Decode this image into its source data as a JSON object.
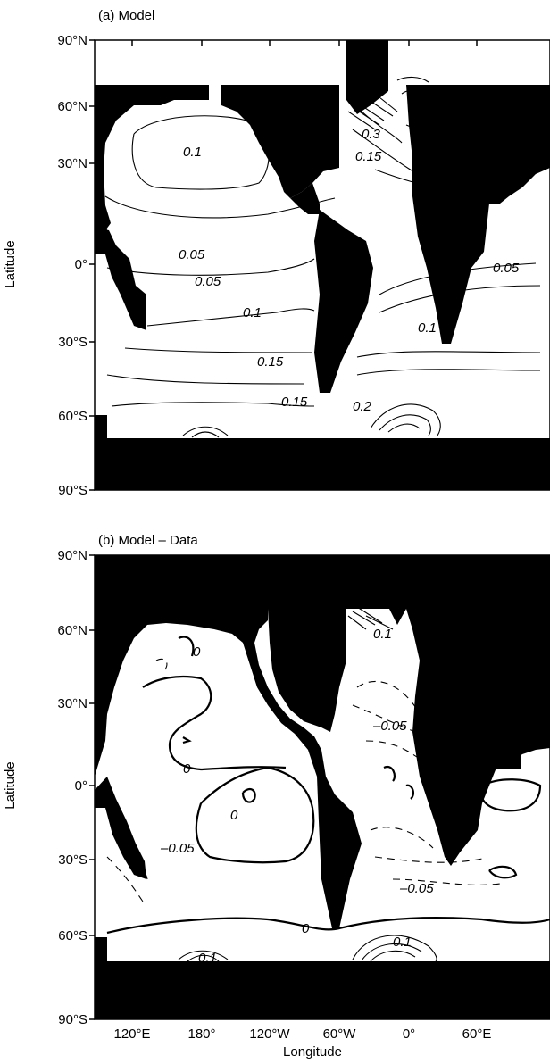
{
  "figure": {
    "panels": [
      {
        "title": "(a) Model",
        "y_label": "Latitude",
        "y_ticks": [
          "90°N",
          "60°N",
          "30°N",
          "0°",
          "30°S",
          "60°S",
          "90°S"
        ],
        "contour_labels": [
          "0.1",
          "0.3",
          "0.15",
          "0.05",
          "0.05",
          "0.05",
          "0.1",
          "0.1",
          "0.15",
          "0.15",
          "0.2"
        ]
      },
      {
        "title": "(b) Model – Data",
        "y_label": "Latitude",
        "y_ticks": [
          "90°N",
          "60°N",
          "30°N",
          "0°",
          "30°S",
          "60°S",
          "90°S"
        ],
        "contour_labels": [
          "0",
          "0.1",
          "–0.05",
          "0",
          "0",
          "–0.05",
          "–0.05",
          "0",
          "0.1",
          "0.1"
        ]
      }
    ],
    "x_label": "Longitude",
    "x_ticks": [
      "120°E",
      "180°",
      "120°W",
      "60°W",
      "0°",
      "60°E"
    ]
  },
  "colors": {
    "land": "#000000",
    "ocean": "#ffffff",
    "contour": "#000000"
  }
}
